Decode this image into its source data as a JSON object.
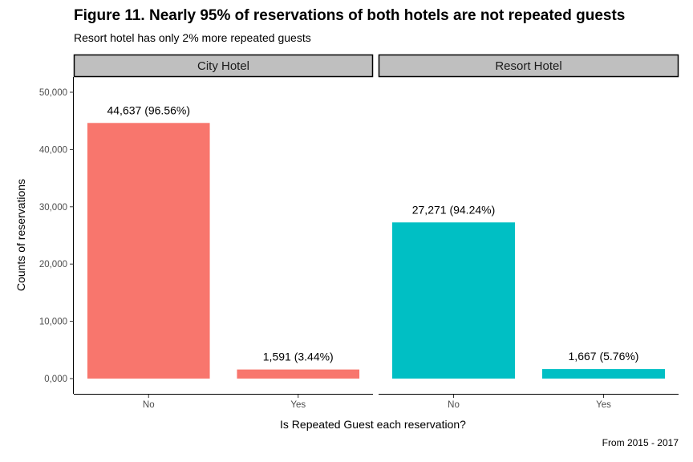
{
  "chart_data": {
    "type": "bar",
    "title": "Figure 11. Nearly 95% of reservations of both hotels are not repeated guests",
    "subtitle": "Resort hotel has only 2% more repeated guests",
    "caption": "From 2015 - 2017",
    "xlabel": "Is Repeated Guest each reservation?",
    "ylabel": "Counts of reservations",
    "ylim": [
      0,
      50000
    ],
    "yticks": [
      0,
      10000,
      20000,
      30000,
      40000,
      50000
    ],
    "ytick_labels": [
      "0,000",
      "10,000",
      "20,000",
      "30,000",
      "40,000",
      "50,000"
    ],
    "categories": [
      "No",
      "Yes"
    ],
    "grid": false,
    "facets": [
      {
        "name": "City Hotel",
        "color": "#F8766D",
        "values": [
          44637,
          1591
        ],
        "labels": [
          "44,637 (96.56%)",
          "1,591 (3.44%)"
        ]
      },
      {
        "name": "Resort Hotel",
        "color": "#00BFC4",
        "values": [
          27271,
          1667
        ],
        "labels": [
          "27,271 (94.24%)",
          "1,667 (5.76%)"
        ]
      }
    ]
  }
}
